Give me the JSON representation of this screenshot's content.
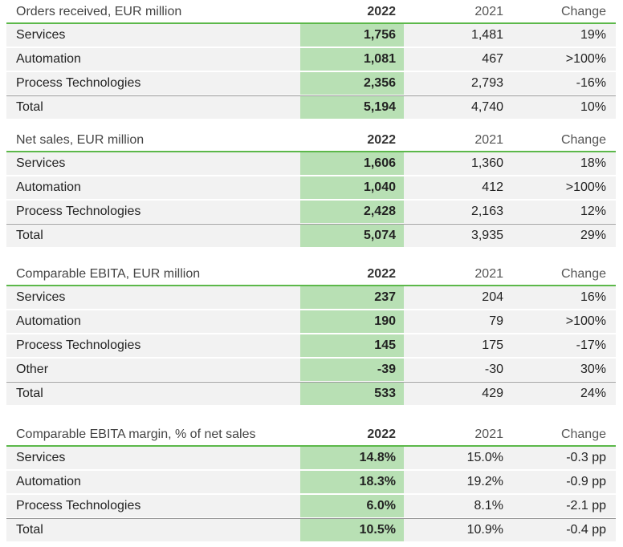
{
  "colors": {
    "accent_line": "#5cb84a",
    "highlight_col": "#b8e0b4",
    "row_bg": "#f2f2f2"
  },
  "sections": [
    {
      "title": "Orders received, EUR million",
      "col_2022": "2022",
      "col_2021": "2021",
      "col_change": "Change",
      "rows": [
        {
          "label": "Services",
          "v2022": "1,756",
          "v2021": "1,481",
          "change": "19%"
        },
        {
          "label": "Automation",
          "v2022": "1,081",
          "v2021": "467",
          "change": ">100%"
        },
        {
          "label": "Process Technologies",
          "v2022": "2,356",
          "v2021": "2,793",
          "change": "-16%"
        },
        {
          "label": "Total",
          "v2022": "5,194",
          "v2021": "4,740",
          "change": "10%",
          "total": true
        }
      ]
    },
    {
      "title": "Net sales, EUR million",
      "col_2022": "2022",
      "col_2021": "2021",
      "col_change": "Change",
      "rows": [
        {
          "label": "Services",
          "v2022": "1,606",
          "v2021": "1,360",
          "change": "18%"
        },
        {
          "label": "Automation",
          "v2022": "1,040",
          "v2021": "412",
          "change": ">100%"
        },
        {
          "label": "Process Technologies",
          "v2022": "2,428",
          "v2021": "2,163",
          "change": "12%"
        },
        {
          "label": "Total",
          "v2022": "5,074",
          "v2021": "3,935",
          "change": "29%",
          "total": true
        }
      ]
    },
    {
      "title": "Comparable EBITA, EUR million",
      "col_2022": "2022",
      "col_2021": "2021",
      "col_change": "Change",
      "rows": [
        {
          "label": "Services",
          "v2022": "237",
          "v2021": "204",
          "change": "16%"
        },
        {
          "label": "Automation",
          "v2022": "190",
          "v2021": "79",
          "change": ">100%"
        },
        {
          "label": "Process Technologies",
          "v2022": "145",
          "v2021": "175",
          "change": "-17%"
        },
        {
          "label": "Other",
          "v2022": "-39",
          "v2021": "-30",
          "change": "30%"
        },
        {
          "label": "Total",
          "v2022": "533",
          "v2021": "429",
          "change": "24%",
          "total": true
        }
      ]
    },
    {
      "title": "Comparable EBITA margin, % of net sales",
      "col_2022": "2022",
      "col_2021": "2021",
      "col_change": "Change",
      "rows": [
        {
          "label": "Services",
          "v2022": "14.8%",
          "v2021": "15.0%",
          "change": "-0.3 pp"
        },
        {
          "label": "Automation",
          "v2022": "18.3%",
          "v2021": "19.2%",
          "change": "-0.9 pp"
        },
        {
          "label": "Process Technologies",
          "v2022": "6.0%",
          "v2021": "8.1%",
          "change": "-2.1 pp"
        },
        {
          "label": "Total",
          "v2022": "10.5%",
          "v2021": "10.9%",
          "change": "-0.4 pp",
          "total": true
        }
      ]
    }
  ]
}
